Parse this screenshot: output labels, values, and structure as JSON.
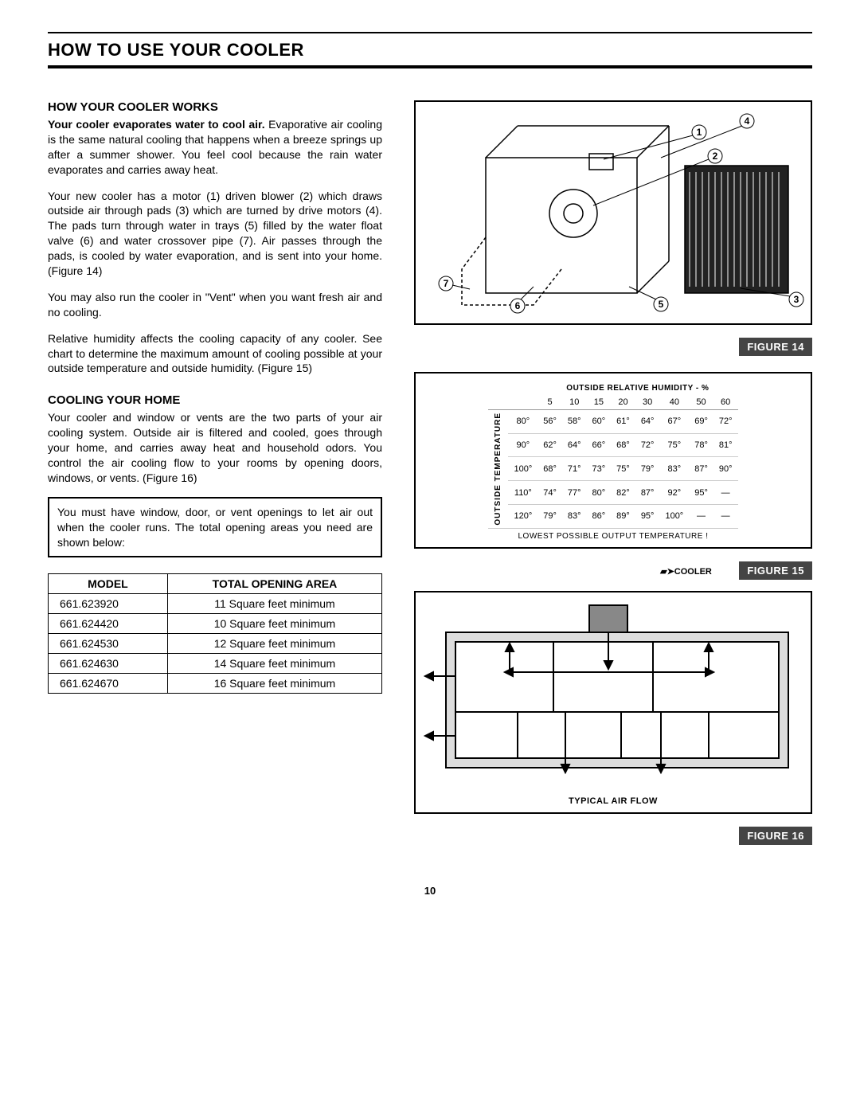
{
  "title": "HOW TO USE YOUR COOLER",
  "pageNumber": "10",
  "section1": {
    "heading": "HOW YOUR COOLER WORKS",
    "lead": "Your cooler evaporates water to cool air.",
    "p1_rest": " Evaporative air cooling is the same natural cooling that happens when a breeze springs up after a summer shower. You feel cool because the rain water evaporates and carries away heat.",
    "p2": "Your new cooler has a motor (1) driven blower (2) which draws outside air through pads (3) which are turned by drive motors (4). The pads turn through water in trays (5) filled by the water float valve (6) and water crossover pipe (7). Air passes through the pads, is cooled by water evaporation, and is sent into your home. (Figure 14)",
    "p3": "You may also run the cooler in \"Vent\" when you want fresh air and no cooling.",
    "p4": "Relative humidity affects the cooling capacity of any cooler. See chart to determine the maximum amount of cooling possible at your outside temperature and outside humidity. (Figure 15)"
  },
  "section2": {
    "heading": "COOLING YOUR HOME",
    "p1": "Your cooler and window or vents are the two parts of your air cooling system. Outside air is filtered and cooled, goes through your home, and carries away heat and household odors. You control the air cooling flow to your rooms by opening doors, windows, or vents. (Figure 16)",
    "callout": "You must have window, door, or vent openings to let air out when the cooler runs. The total opening areas you need are shown below:"
  },
  "modelTable": {
    "headers": [
      "MODEL",
      "TOTAL OPENING AREA"
    ],
    "rows": [
      [
        "661.623920",
        "11 Square feet minimum"
      ],
      [
        "661.624420",
        "10 Square feet minimum"
      ],
      [
        "661.624530",
        "12 Square feet minimum"
      ],
      [
        "661.624630",
        "14 Square feet minimum"
      ],
      [
        "661.624670",
        "16 Square feet minimum"
      ]
    ]
  },
  "figure14": {
    "label": "FIGURE 14"
  },
  "figure15": {
    "label": "FIGURE 15",
    "topHeader": "OUTSIDE RELATIVE HUMIDITY - %",
    "sideHeader": "OUTSIDE TEMPERATURE",
    "cols": [
      "5",
      "10",
      "15",
      "20",
      "30",
      "40",
      "50",
      "60"
    ],
    "rowLabels": [
      "80°",
      "90°",
      "100°",
      "110°",
      "120°"
    ],
    "cells": [
      [
        "56°",
        "58°",
        "60°",
        "61°",
        "64°",
        "67°",
        "69°",
        "72°"
      ],
      [
        "62°",
        "64°",
        "66°",
        "68°",
        "72°",
        "75°",
        "78°",
        "81°"
      ],
      [
        "68°",
        "71°",
        "73°",
        "75°",
        "79°",
        "83°",
        "87°",
        "90°"
      ],
      [
        "74°",
        "77°",
        "80°",
        "82°",
        "87°",
        "92°",
        "95°",
        "—"
      ],
      [
        "79°",
        "83°",
        "86°",
        "89°",
        "95°",
        "100°",
        "—",
        "—"
      ]
    ],
    "caption": "LOWEST POSSIBLE OUTPUT TEMPERATURE !",
    "coolerTag": "COOLER"
  },
  "figure16": {
    "label": "FIGURE 16",
    "caption": "TYPICAL AIR FLOW"
  }
}
